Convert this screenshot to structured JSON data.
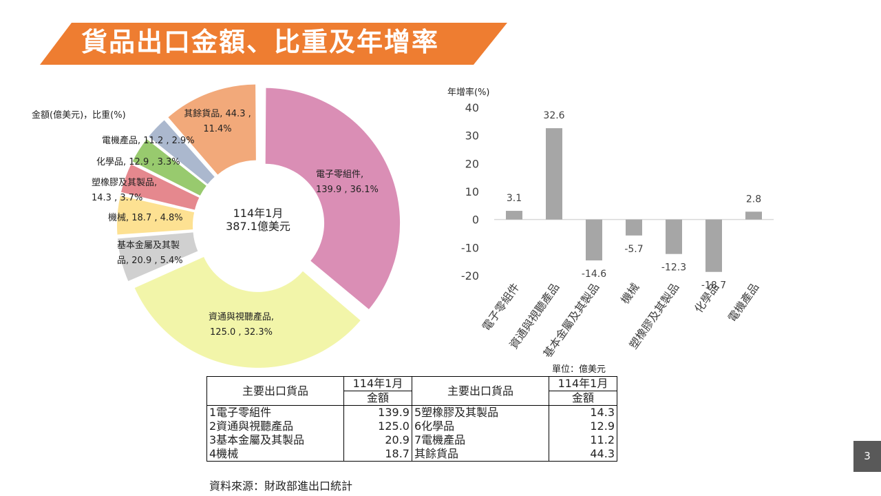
{
  "title": "貨品出口金額、比重及年增率",
  "page_number": "3",
  "colors": {
    "banner": "#EE7D31",
    "bars": "#A6A6A6"
  },
  "donut": {
    "unit_label": "金額(億美元)，比重(%)",
    "center_line1": "114年1月",
    "center_line2": "387.1億美元"
  },
  "bar_axis_title": "年增率(%)",
  "chart_data": [
    {
      "type": "pie",
      "title": "",
      "donut": true,
      "slices": [
        {
          "label_line1": "電子零組件,",
          "label_line2": "139.9 , 36.1%",
          "category": "電子零組件",
          "value": 139.9,
          "percent": 36.1,
          "color": "#DA8EB5"
        },
        {
          "label_line1": "資通與視聽產品,",
          "label_line2": "125.0 , 32.3%",
          "category": "資通與視聽產品",
          "value": 125.0,
          "percent": 32.3,
          "color": "#F2F5A9"
        },
        {
          "label_line1": "基本金屬及其製",
          "label_line2": "品, 20.9 , 5.4%",
          "category": "基本金屬及其製品",
          "value": 20.9,
          "percent": 5.4,
          "color": "#D0D0D0"
        },
        {
          "label_line1": "機械, 18.7 , 4.8%",
          "label_line2": "",
          "category": "機械",
          "value": 18.7,
          "percent": 4.8,
          "color": "#FDE192"
        },
        {
          "label_line1": "塑橡膠及其製品,",
          "label_line2": "14.3 , 3.7%",
          "category": "塑橡膠及其製品",
          "value": 14.3,
          "percent": 3.7,
          "color": "#E5888E"
        },
        {
          "label_line1": "化學品, 12.9 , 3.3%",
          "label_line2": "",
          "category": "化學品",
          "value": 12.9,
          "percent": 3.3,
          "color": "#98CA6E"
        },
        {
          "label_line1": "電機產品, 11.2 , 2.9%",
          "label_line2": "",
          "category": "電機產品",
          "value": 11.2,
          "percent": 2.9,
          "color": "#ABB8CE"
        },
        {
          "label_line1": "其餘貨品, 44.3 ,",
          "label_line2": "11.4%",
          "category": "其餘貨品",
          "value": 44.3,
          "percent": 11.4,
          "color": "#F2A97A"
        }
      ]
    },
    {
      "type": "bar",
      "title": "",
      "ylabel": "年增率(%)",
      "categories": [
        "電子零組件",
        "資通與視聽產品",
        "基本金屬及其製品",
        "機械",
        "塑橡膠及其製品",
        "化學品",
        "電機產品"
      ],
      "values": [
        3.1,
        32.6,
        -14.6,
        -5.7,
        -12.3,
        -18.7,
        2.8
      ],
      "value_labels": [
        "3.1",
        "32.6",
        "-14.6",
        "-5.7",
        "-12.3",
        "-18.7",
        "2.8"
      ],
      "ylim": [
        -20,
        40
      ],
      "yticks": [
        40,
        30,
        20,
        10,
        0,
        -10,
        -20
      ],
      "grid": false,
      "legend": "none"
    }
  ],
  "table": {
    "unit": "單位：億美元",
    "header": {
      "col_item": "主要出口貨品",
      "col_period": "114年1月",
      "col_amount": "金額"
    },
    "left_rows": [
      {
        "name": "1電子零組件",
        "value": "139.9"
      },
      {
        "name": "2資通與視聽產品",
        "value": "125.0"
      },
      {
        "name": "3基本金屬及其製品",
        "value": "20.9"
      },
      {
        "name": "4機械",
        "value": "18.7"
      }
    ],
    "right_rows": [
      {
        "name": "5塑橡膠及其製品",
        "value": "14.3"
      },
      {
        "name": "6化學品",
        "value": "12.9"
      },
      {
        "name": "7電機產品",
        "value": "11.2"
      },
      {
        "name": "其餘貨品",
        "value": "44.3"
      }
    ]
  },
  "source": "資料來源：財政部進出口統計"
}
